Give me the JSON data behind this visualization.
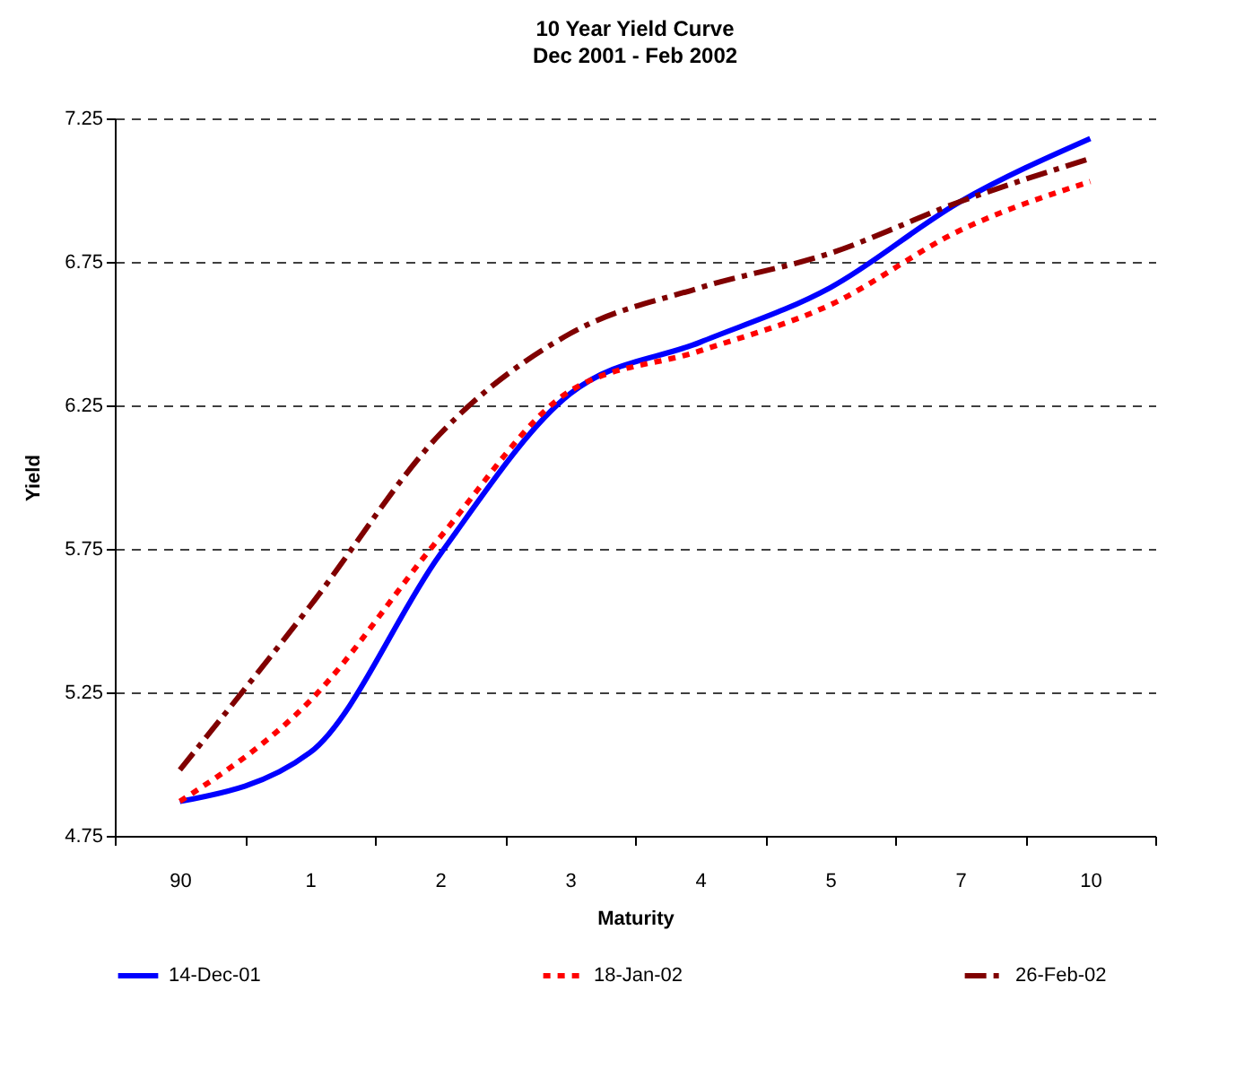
{
  "chart_data": {
    "type": "line",
    "title": "10 Year Yield Curve",
    "subtitle": "Dec 2001 - Feb 2002",
    "xlabel": "Maturity",
    "ylabel": "Yield",
    "categories": [
      "90",
      "1",
      "2",
      "3",
      "4",
      "5",
      "7",
      "10"
    ],
    "series": [
      {
        "name": "14-Dec-01",
        "color": "#0000ff",
        "line_style": "solid",
        "values": [
          4.87,
          5.04,
          5.73,
          6.29,
          6.47,
          6.66,
          6.96,
          7.18
        ]
      },
      {
        "name": "18-Jan-02",
        "color": "#ff0000",
        "line_style": "dotted",
        "values": [
          4.87,
          5.22,
          5.79,
          6.3,
          6.44,
          6.6,
          6.86,
          7.03
        ]
      },
      {
        "name": "26-Feb-02",
        "color": "#800000",
        "line_style": "dashed",
        "values": [
          4.98,
          5.55,
          6.15,
          6.5,
          6.66,
          6.78,
          6.96,
          7.11
        ]
      }
    ],
    "ylim": [
      4.75,
      7.25
    ],
    "yticks": [
      4.75,
      5.25,
      5.75,
      6.25,
      6.75,
      7.25
    ],
    "grid": "y",
    "legend": "bottom",
    "marker": "none"
  }
}
